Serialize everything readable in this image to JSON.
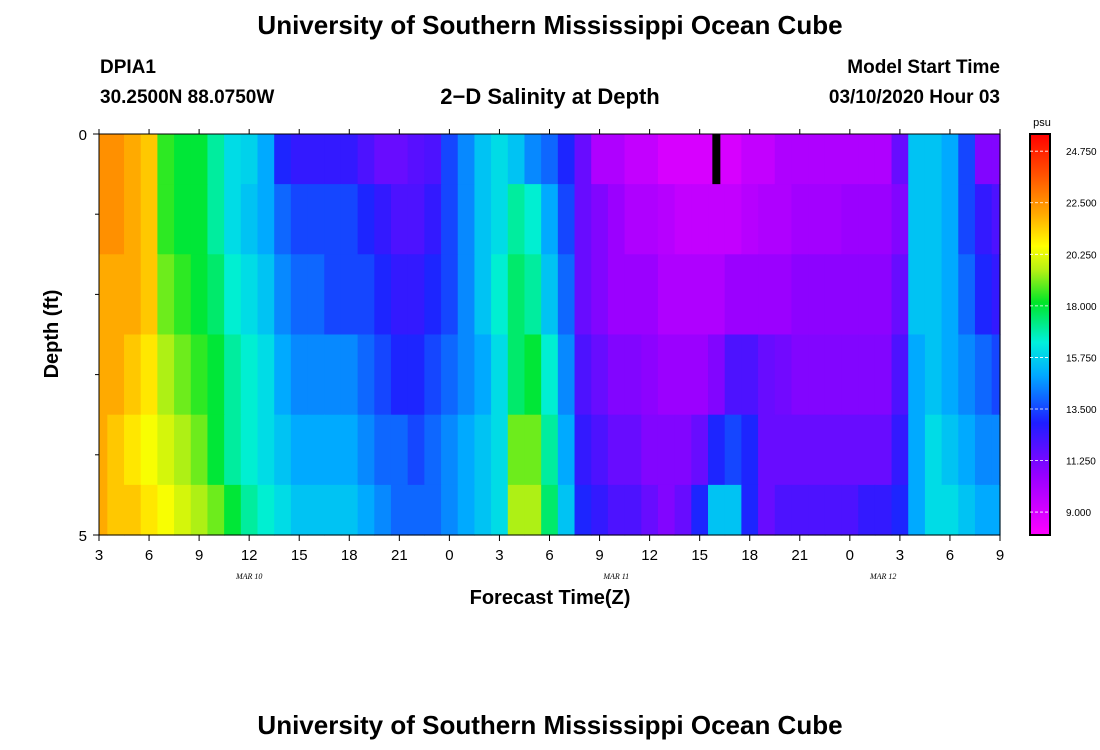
{
  "header": {
    "title_top": "University of Southern Mississippi Ocean Cube",
    "title_bottom": "University of Southern Mississippi Ocean Cube",
    "station_id": "DPIA1",
    "station_coords": "30.2500N 88.0750W",
    "subtitle": "2−D Salinity at Depth",
    "model_start_label": "Model Start Time",
    "model_start_value": "03/10/2020 Hour 03"
  },
  "chart_data": {
    "type": "heatmap",
    "title": "2-D Salinity at Depth",
    "xlabel": "Forecast Time(Z)",
    "ylabel": "Depth (ft)",
    "ylim": [
      0,
      5
    ],
    "y_ticks": [
      "0",
      "5"
    ],
    "x_tick_labels": [
      "3",
      "6",
      "9",
      "12",
      "15",
      "18",
      "21",
      "0",
      "3",
      "6",
      "9",
      "12",
      "15",
      "18",
      "21",
      "0",
      "3",
      "6",
      "9"
    ],
    "date_labels": [
      {
        "label": "MAR 10",
        "hours_from_start": 9
      },
      {
        "label": "MAR 11",
        "hours_from_start": 31
      },
      {
        "label": "MAR 12",
        "hours_from_start": 47
      }
    ],
    "colorbar": {
      "unit": "psu",
      "min": 8.0,
      "max": 25.5,
      "tick_labels": [
        "24.750",
        "22.500",
        "20.250",
        "18.000",
        "15.750",
        "13.500",
        "11.250",
        "9.000"
      ],
      "tick_values": [
        24.75,
        22.5,
        20.25,
        18.0,
        15.75,
        13.5,
        11.25,
        9.0
      ]
    },
    "depth_rows": [
      0.25,
      1.0,
      2.0,
      3.0,
      4.0,
      4.75
    ],
    "time_hours": [
      0,
      1,
      2,
      3,
      4,
      5,
      6,
      7,
      8,
      9,
      10,
      11,
      12,
      13,
      14,
      15,
      16,
      17,
      18,
      19,
      20,
      21,
      22,
      23,
      24,
      25,
      26,
      27,
      28,
      29,
      30,
      31,
      32,
      33,
      34,
      35,
      36,
      37,
      38,
      39,
      40,
      41,
      42,
      43,
      44,
      45,
      46,
      47,
      48,
      49,
      50,
      51,
      52,
      53,
      54
    ],
    "salinity": [
      [
        22.5,
        22.5,
        22.0,
        21.5,
        18.5,
        18.0,
        18.0,
        17.0,
        16.0,
        15.8,
        15.0,
        13.0,
        12.5,
        12.5,
        12.5,
        12.5,
        12.0,
        11.5,
        11.5,
        11.8,
        12.0,
        13.5,
        14.5,
        15.5,
        16.0,
        15.5,
        14.5,
        14.0,
        13.0,
        11.5,
        10.0,
        10.0,
        9.5,
        9.5,
        9.0,
        9.0,
        9.0,
        9.0,
        9.0,
        9.5,
        9.5,
        10.0,
        10.0,
        10.0,
        10.0,
        10.0,
        10.0,
        10.0,
        11.5,
        15.5,
        15.5,
        15.0,
        13.5,
        11.0,
        11.0
      ],
      [
        22.5,
        22.5,
        22.0,
        21.5,
        18.5,
        18.0,
        18.0,
        17.0,
        16.0,
        15.5,
        15.0,
        14.0,
        13.5,
        13.5,
        13.5,
        13.5,
        13.0,
        12.5,
        12.0,
        12.0,
        12.5,
        13.5,
        14.5,
        15.5,
        16.0,
        17.0,
        16.5,
        15.0,
        13.5,
        11.5,
        11.0,
        10.5,
        10.0,
        10.0,
        9.8,
        9.5,
        9.5,
        9.5,
        9.5,
        9.8,
        10.0,
        10.0,
        10.3,
        10.3,
        10.3,
        10.5,
        10.5,
        10.5,
        11.0,
        15.5,
        15.5,
        15.0,
        13.5,
        12.5,
        12.0
      ],
      [
        22.0,
        22.0,
        22.0,
        21.5,
        19.0,
        18.5,
        18.0,
        17.5,
        16.5,
        16.0,
        15.5,
        14.5,
        14.0,
        14.0,
        13.5,
        13.5,
        13.5,
        13.0,
        12.5,
        12.5,
        13.0,
        13.5,
        14.5,
        15.5,
        16.5,
        17.5,
        17.0,
        15.5,
        14.0,
        11.5,
        11.0,
        10.5,
        10.5,
        10.5,
        10.0,
        10.0,
        10.0,
        10.0,
        10.5,
        10.5,
        10.5,
        10.5,
        10.8,
        10.8,
        10.8,
        10.8,
        10.8,
        10.8,
        11.5,
        15.5,
        15.5,
        15.0,
        14.0,
        13.0,
        12.5
      ],
      [
        22.0,
        22.0,
        21.5,
        21.0,
        19.5,
        19.0,
        18.5,
        18.0,
        17.0,
        16.5,
        16.0,
        15.0,
        14.5,
        14.5,
        14.5,
        14.5,
        14.0,
        13.5,
        13.0,
        13.0,
        13.5,
        14.0,
        14.5,
        15.0,
        16.0,
        17.5,
        18.0,
        16.5,
        14.5,
        12.0,
        11.5,
        11.0,
        11.0,
        10.8,
        10.5,
        10.5,
        10.5,
        11.0,
        12.0,
        12.0,
        11.5,
        11.3,
        11.0,
        11.0,
        11.0,
        11.0,
        11.0,
        11.0,
        12.0,
        15.0,
        15.5,
        15.0,
        14.5,
        14.0,
        13.5
      ],
      [
        22.0,
        21.5,
        21.0,
        20.5,
        20.0,
        19.5,
        19.0,
        18.0,
        17.0,
        16.5,
        16.0,
        15.5,
        15.0,
        15.0,
        15.0,
        15.0,
        14.5,
        14.0,
        14.0,
        13.5,
        14.0,
        14.5,
        15.0,
        15.5,
        16.0,
        19.0,
        19.0,
        17.0,
        15.0,
        12.5,
        12.0,
        11.5,
        11.5,
        11.0,
        11.0,
        11.0,
        11.5,
        13.0,
        13.5,
        13.0,
        11.5,
        11.5,
        11.5,
        11.5,
        11.5,
        11.5,
        11.5,
        11.5,
        12.5,
        15.0,
        16.0,
        15.5,
        15.0,
        14.5,
        14.5
      ],
      [
        22.0,
        21.5,
        21.5,
        21.0,
        20.5,
        20.0,
        19.5,
        19.0,
        18.0,
        17.0,
        16.5,
        16.0,
        15.5,
        15.5,
        15.5,
        15.5,
        15.0,
        14.5,
        14.0,
        14.0,
        14.0,
        14.5,
        15.0,
        15.5,
        16.0,
        19.5,
        19.5,
        17.5,
        15.5,
        13.0,
        12.5,
        12.0,
        12.0,
        11.5,
        11.0,
        11.5,
        13.0,
        15.5,
        15.5,
        13.0,
        11.5,
        12.0,
        12.0,
        12.0,
        12.0,
        12.0,
        12.5,
        12.5,
        13.0,
        15.0,
        16.0,
        16.0,
        15.5,
        15.0,
        15.0
      ]
    ],
    "missing_markers": [
      {
        "hours_from_start": 37,
        "depth_row": 0
      }
    ]
  }
}
